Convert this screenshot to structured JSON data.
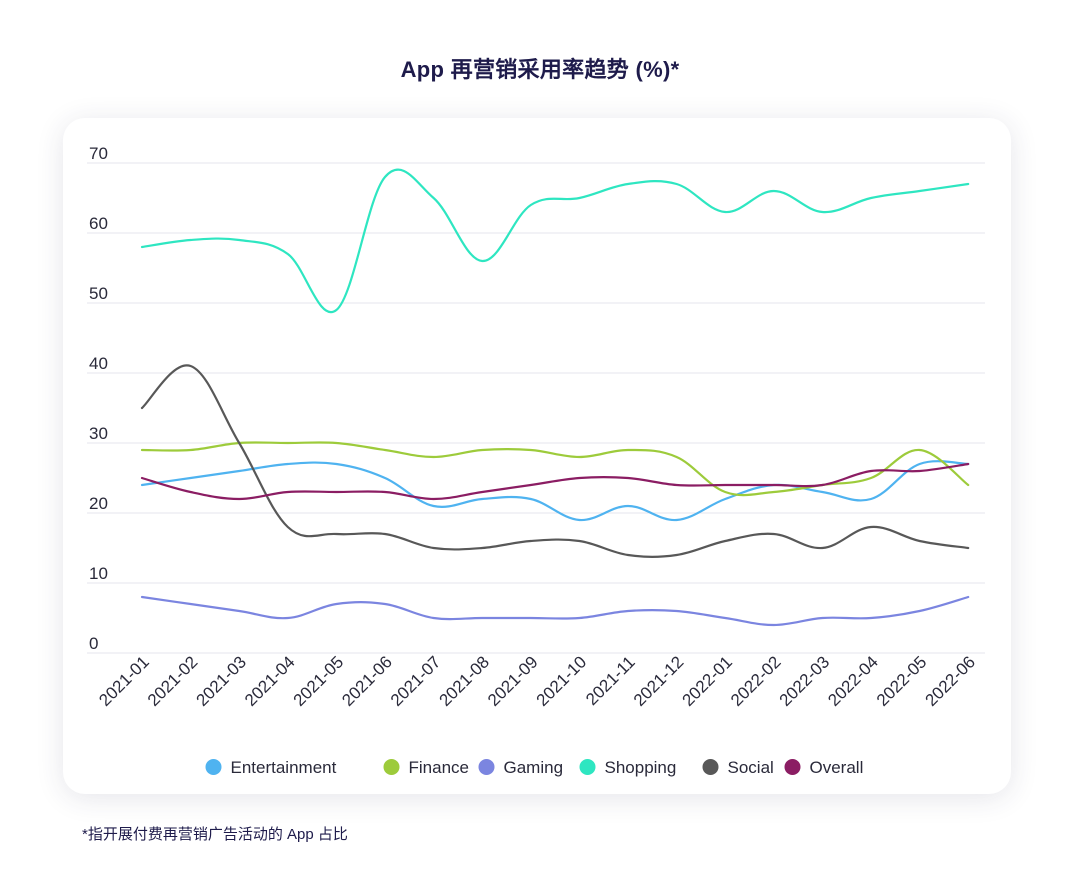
{
  "chart_data": {
    "type": "line",
    "title": "App 再营销采用率趋势 (%)*",
    "xlabel": "",
    "ylabel": "",
    "ylim": [
      0,
      70
    ],
    "yticks": [
      0,
      10,
      20,
      30,
      40,
      50,
      60,
      70
    ],
    "grid": true,
    "legend_position": "bottom",
    "categories": [
      "2021-01",
      "2021-02",
      "2021-03",
      "2021-04",
      "2021-05",
      "2021-06",
      "2021-07",
      "2021-08",
      "2021-09",
      "2021-10",
      "2021-11",
      "2021-12",
      "2022-01",
      "2022-02",
      "2022-03",
      "2022-04",
      "2022-05",
      "2022-06"
    ],
    "series": [
      {
        "name": "Entertainment",
        "color": "#4fb3f0",
        "values": [
          24,
          25,
          26,
          27,
          27,
          25,
          21,
          22,
          22,
          19,
          21,
          19,
          22,
          24,
          23,
          22,
          27,
          27
        ]
      },
      {
        "name": "Finance",
        "color": "#9dcb3b",
        "values": [
          29,
          29,
          30,
          30,
          30,
          29,
          28,
          29,
          29,
          28,
          29,
          28,
          23,
          23,
          24,
          25,
          29,
          24
        ]
      },
      {
        "name": "Gaming",
        "color": "#7b85e0",
        "values": [
          8,
          7,
          6,
          5,
          7,
          7,
          5,
          5,
          5,
          5,
          6,
          6,
          5,
          4,
          5,
          5,
          6,
          8
        ]
      },
      {
        "name": "Shopping",
        "color": "#2ee6c1",
        "values": [
          58,
          59,
          59,
          57,
          49,
          68,
          65,
          56,
          64,
          65,
          67,
          67,
          63,
          66,
          63,
          65,
          66,
          67
        ]
      },
      {
        "name": "Social",
        "color": "#585858",
        "values": [
          35,
          41,
          30,
          18,
          17,
          17,
          15,
          15,
          16,
          16,
          14,
          14,
          16,
          17,
          15,
          18,
          16,
          15
        ]
      },
      {
        "name": "Overall",
        "color": "#8b1d63",
        "values": [
          25,
          23,
          22,
          23,
          23,
          23,
          22,
          23,
          24,
          25,
          25,
          24,
          24,
          24,
          24,
          26,
          26,
          27
        ]
      }
    ]
  },
  "footnote": "*指开展付费再营销广告活动的 App 占比"
}
